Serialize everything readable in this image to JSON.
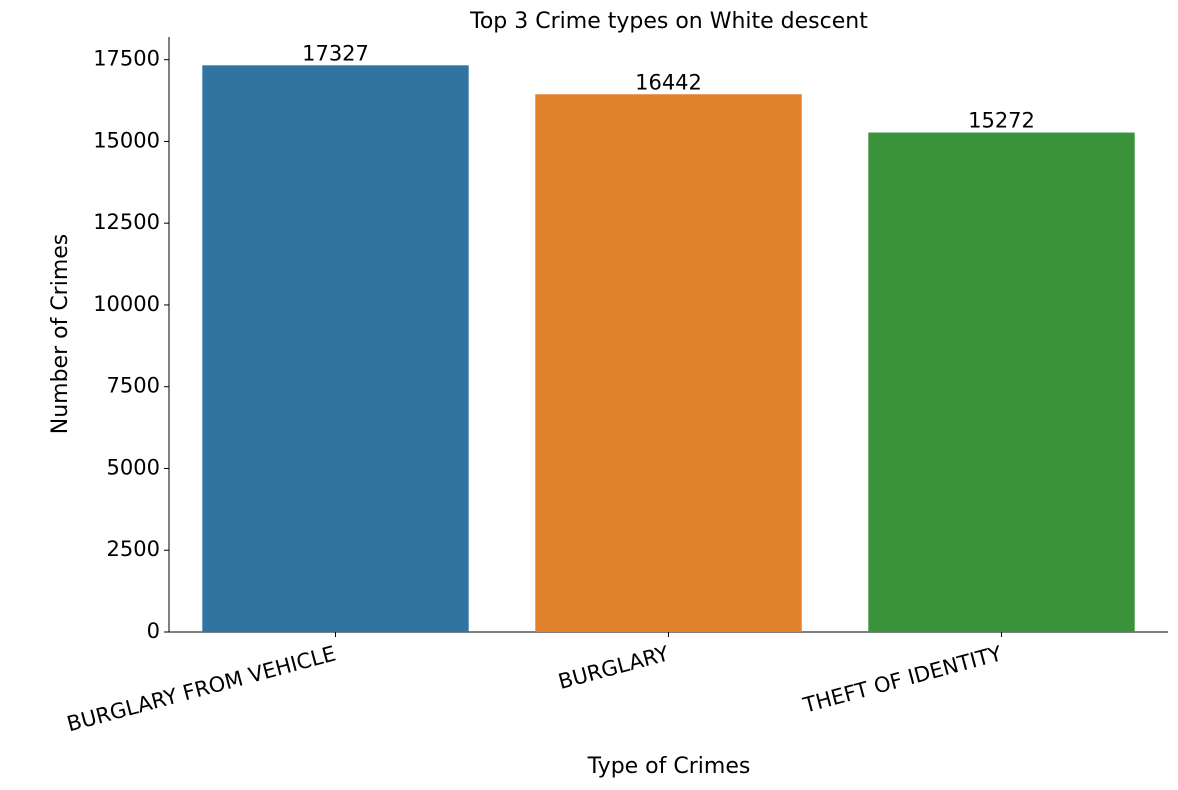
{
  "chart_data": {
    "type": "bar",
    "title": "Top 3 Crime types on White descent",
    "x_label": "Type of Crimes",
    "y_label": "Number of Crimes",
    "categories": [
      "BURGLARY FROM VEHICLE",
      "BURGLARY",
      "THEFT OF IDENTITY"
    ],
    "values": [
      17327,
      16442,
      15272
    ],
    "colors": [
      "#3274a1",
      "#e1812c",
      "#3a923a"
    ],
    "ylim": [
      0,
      18193
    ],
    "yticks": [
      0,
      2500,
      5000,
      7500,
      10000,
      12500,
      15000,
      17500
    ],
    "grid": false
  }
}
